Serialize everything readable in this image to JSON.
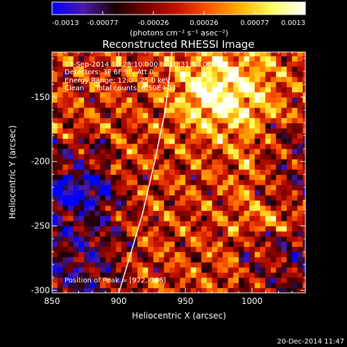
{
  "colorbar": {
    "ticks": [
      "-0.0013",
      "-0.00077",
      "-0.00026",
      "0.00026",
      "0.00077",
      "0.0013"
    ],
    "units_label": "(photons cm⁻² s⁻¹ asec⁻²)",
    "colormap_stops": [
      "#0000ff",
      "#4a1aa8",
      "#1a0000",
      "#7a0000",
      "#c81400",
      "#ff5a00",
      "#ffb800",
      "#ffff66",
      "#ffffff"
    ]
  },
  "chart_data": {
    "type": "heatmap",
    "title": "Reconstructed RHESSI Image",
    "xlabel": "Heliocentric X (arcsec)",
    "ylabel": "Heliocentric Y (arcsec)",
    "xlim": [
      850,
      1040
    ],
    "ylim": [
      -302,
      -115
    ],
    "x_ticks": [
      850,
      900,
      950,
      1000
    ],
    "y_ticks": [
      -150,
      -200,
      -250,
      -300
    ],
    "value_range": [
      -0.0013,
      0.0013
    ],
    "limb_curve": [
      [
        940,
        -115
      ],
      [
        935,
        -160
      ],
      [
        927,
        -200
      ],
      [
        918,
        -240
      ],
      [
        908,
        -275
      ],
      [
        900,
        -302
      ]
    ],
    "annotations": [
      "13-Sep-2014 10:28:10.000 to 10:31:10.000",
      "Detectors: 3F 6F 9F, Att 0",
      "Energy Range: 12.0 - 25.0 keV",
      "Clean     Total counts: 6.50E+03"
    ],
    "peak_label": "Position of Peak = [972,-146]",
    "timestamp": "20-Dec-2014 11:47"
  }
}
